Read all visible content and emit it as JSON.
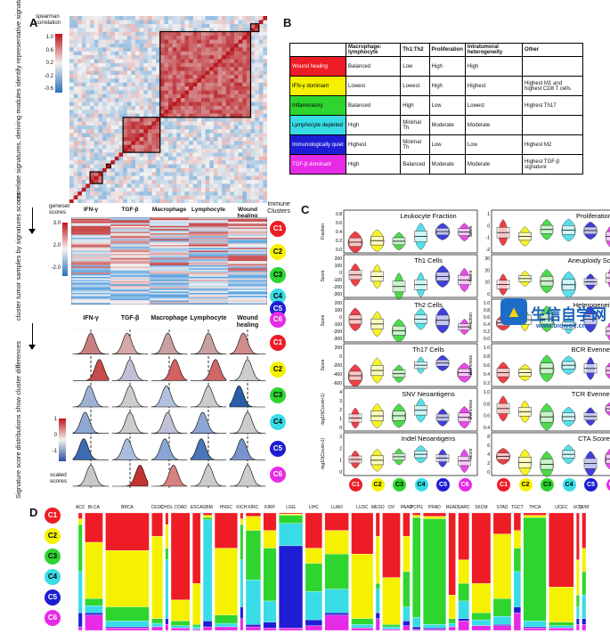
{
  "panelA": {
    "letter": "A",
    "corr_legend_title": "spearman correlation",
    "corr_ticks": [
      "1.0",
      "0.6",
      "0.2",
      "-0.2",
      "-0.6"
    ],
    "left_label_1": "correlate signatures, deriving modules identify representative signatures",
    "left_label_2": "cluster tumor samples by signatures scores",
    "left_label_3": "Signature score distributions show cluster differences",
    "module_labels": [
      "IFN-γ",
      "TGF-β",
      "Macrophage",
      "Lymphocyte",
      "Wound healing"
    ],
    "geneset_title": "geneset scores",
    "geneset_ticks": [
      "3.0",
      "2.0",
      "-2.0"
    ],
    "immune_clusters_title": "Immune Clusters",
    "clusters": [
      "C1",
      "C2",
      "C3",
      "C4",
      "C5",
      "C6"
    ],
    "density_headers": [
      "IFN-γ",
      "TGF-β",
      "Macrophage",
      "Lymphocyte",
      "Wound healing"
    ],
    "scaled_title": "scaled scores",
    "scaled_ticks": [
      "1",
      "0",
      "-1"
    ]
  },
  "panelB": {
    "letter": "B",
    "columns": [
      "",
      "Macrophage: lymphocyte",
      "Th1:Th2",
      "Proliferation",
      "Intratumoral heterogeneity",
      "Other"
    ],
    "rows": [
      {
        "name": "Wound healing",
        "color": "#ee1c25",
        "text": "#ffffff",
        "cells": [
          "Balanced",
          "Low",
          "High",
          "High",
          ""
        ]
      },
      {
        "name": "IFN-γ dominant",
        "color": "#f5f100",
        "text": "#000000",
        "cells": [
          "Lowest",
          "Lowest",
          "High",
          "Highest",
          "Highest M1 and highest CD8 T cells"
        ]
      },
      {
        "name": "Inflammatory",
        "color": "#2ed52e",
        "text": "#000000",
        "cells": [
          "Balanced",
          "High",
          "Low",
          "Lowest",
          "Highest Th17"
        ]
      },
      {
        "name": "Lymphocyte depleted",
        "color": "#38dce6",
        "text": "#000000",
        "cells": [
          "High",
          "Minimal Th",
          "Moderate",
          "Moderate",
          ""
        ]
      },
      {
        "name": "Immunologically quiet",
        "color": "#1d1ed4",
        "text": "#ffffff",
        "cells": [
          "Highest",
          "Minimal Th",
          "Low",
          "Low",
          "Highest M2"
        ]
      },
      {
        "name": "TGF-β dominant",
        "color": "#e62ae6",
        "text": "#ffffff",
        "cells": [
          "High",
          "Balanced",
          "Moderate",
          "Moderate",
          "Highest TGF-β signature"
        ]
      }
    ]
  },
  "panelC": {
    "letter": "C",
    "left_titles": [
      "Leukocyte Fraction",
      "Th1 Cells",
      "Th2 Cells",
      "Th17 Cells",
      "SNV Neoantigens",
      "Indel Neoantigens"
    ],
    "right_titles": [
      "Proliferation",
      "Aneuploidy Score",
      "Heterogeneity",
      "BCR Evenness",
      "TCR Evenness",
      "CTA Score"
    ],
    "left_ylabels": [
      "Fraction",
      "Score",
      "Score",
      "Score",
      "-log10(Count+1)",
      "-log10(Count+1)"
    ],
    "right_ylabels": [
      "Score",
      "Score",
      "Fraction",
      "Evenness",
      "Evenness",
      "Score"
    ],
    "left_ticks": [
      [
        "0.8",
        "0.6",
        "0.4",
        "0.2",
        "0.0"
      ],
      [
        "200",
        "100",
        "0",
        "-100",
        "-200",
        "-300"
      ],
      [
        "200",
        "100",
        "0",
        "-100",
        "-200",
        "-300"
      ],
      [
        "200",
        "0",
        "-200",
        "-400",
        "-600"
      ],
      [
        "4",
        "3",
        "2",
        "1",
        "0"
      ],
      [
        "3",
        "2",
        "1",
        "0"
      ]
    ],
    "right_ticks": [
      [
        "1",
        "0",
        "-1",
        "-2"
      ],
      [
        "30",
        "20",
        "10",
        "0"
      ],
      [
        "1.0",
        "0.8",
        "0.6",
        "0.4",
        "0.2",
        "0.0"
      ],
      [
        "1.0",
        "0.8",
        "0.6",
        "0.4",
        "0.2"
      ],
      [
        "1.0",
        "0.8",
        "0.6",
        "0.4"
      ],
      [
        "8",
        "6",
        "4",
        "2",
        "0"
      ]
    ]
  },
  "panelD": {
    "letter": "D",
    "cancers": [
      "ACC",
      "BLCA",
      "BRCA",
      "CESC",
      "CHOL",
      "COAD",
      "ESCA",
      "GBM",
      "HNSC",
      "KICH",
      "KIRC",
      "KIRP",
      "LGG",
      "LIHC",
      "LUAD",
      "LUSC",
      "MESO",
      "OV",
      "PAAD",
      "PCPG",
      "PRAD",
      "READ",
      "SARC",
      "SKCM",
      "STAD",
      "TGCT",
      "THCA",
      "UCEC",
      "UCS",
      "UVM"
    ],
    "widths": [
      4,
      18,
      44,
      11,
      3,
      19,
      8,
      9,
      23,
      3,
      15,
      13,
      24,
      17,
      24,
      22,
      4,
      18,
      7,
      8,
      23,
      7,
      11,
      19,
      18,
      7,
      23,
      25,
      3,
      4
    ],
    "fractions": [
      [
        0.05,
        0.05,
        0.4,
        0.35,
        0.12,
        0.03
      ],
      [
        0.25,
        0.48,
        0.06,
        0.06,
        0.02,
        0.13
      ],
      [
        0.32,
        0.48,
        0.12,
        0.05,
        0.01,
        0.02
      ],
      [
        0.2,
        0.7,
        0.04,
        0.03,
        0.0,
        0.03
      ],
      [
        0.1,
        0.2,
        0.1,
        0.5,
        0.05,
        0.05
      ],
      [
        0.74,
        0.18,
        0.04,
        0.02,
        0.0,
        0.02
      ],
      [
        0.6,
        0.35,
        0.02,
        0.02,
        0.0,
        0.01
      ],
      [
        0.02,
        0.02,
        0.02,
        0.86,
        0.05,
        0.03
      ],
      [
        0.3,
        0.57,
        0.07,
        0.03,
        0.0,
        0.03
      ],
      [
        0.05,
        0.05,
        0.3,
        0.4,
        0.1,
        0.1
      ],
      [
        0.03,
        0.12,
        0.42,
        0.38,
        0.02,
        0.03
      ],
      [
        0.15,
        0.15,
        0.45,
        0.18,
        0.05,
        0.02
      ],
      [
        0.01,
        0.01,
        0.07,
        0.19,
        0.7,
        0.02
      ],
      [
        0.3,
        0.13,
        0.24,
        0.24,
        0.05,
        0.04
      ],
      [
        0.15,
        0.2,
        0.3,
        0.2,
        0.02,
        0.13
      ],
      [
        0.35,
        0.55,
        0.05,
        0.03,
        0.0,
        0.02
      ],
      [
        0.2,
        0.4,
        0.05,
        0.2,
        0.05,
        0.1
      ],
      [
        0.55,
        0.4,
        0.02,
        0.02,
        0.0,
        0.01
      ],
      [
        0.2,
        0.3,
        0.3,
        0.12,
        0.04,
        0.04
      ],
      [
        0.02,
        0.02,
        0.85,
        0.08,
        0.02,
        0.01
      ],
      [
        0.03,
        0.02,
        0.9,
        0.03,
        0.01,
        0.01
      ],
      [
        0.7,
        0.2,
        0.04,
        0.03,
        0.0,
        0.03
      ],
      [
        0.4,
        0.2,
        0.15,
        0.15,
        0.02,
        0.08
      ],
      [
        0.6,
        0.25,
        0.06,
        0.05,
        0.0,
        0.04
      ],
      [
        0.18,
        0.55,
        0.15,
        0.07,
        0.01,
        0.04
      ],
      [
        0.15,
        0.15,
        0.2,
        0.3,
        0.05,
        0.15
      ],
      [
        0.02,
        0.02,
        0.88,
        0.05,
        0.01,
        0.02
      ],
      [
        0.63,
        0.3,
        0.03,
        0.02,
        0.0,
        0.02
      ],
      [
        0.4,
        0.3,
        0.1,
        0.1,
        0.05,
        0.05
      ],
      [
        0.3,
        0.2,
        0.2,
        0.2,
        0.05,
        0.05
      ]
    ],
    "cluster_colors": [
      "#ee1c25",
      "#f5f100",
      "#2ed52e",
      "#38dce6",
      "#1d1ed4",
      "#e62ae6"
    ]
  },
  "watermark": {
    "text_cn": "生信自学网",
    "url": "www.biowolf.cn"
  }
}
